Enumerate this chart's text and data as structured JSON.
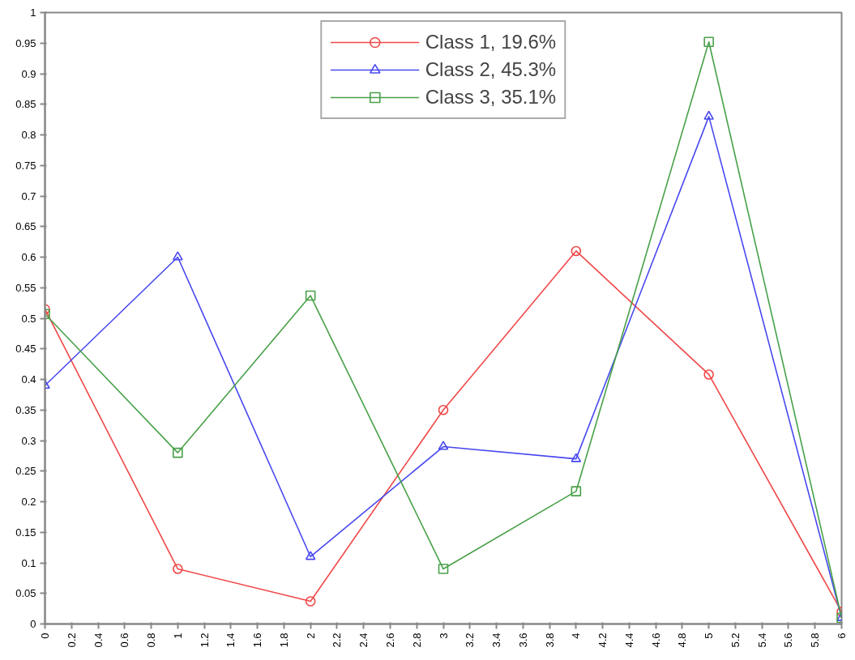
{
  "chart_data": {
    "type": "line",
    "x": [
      0,
      1,
      2,
      3,
      4,
      5,
      6
    ],
    "series": [
      {
        "name": "Class 1, 19.6%",
        "color": "#f04848",
        "marker": "circle",
        "values": [
          0.515,
          0.09,
          0.037,
          0.35,
          0.61,
          0.408,
          0.02
        ]
      },
      {
        "name": "Class 2, 45.3%",
        "color": "#4848f0",
        "marker": "triangle",
        "values": [
          0.39,
          0.6,
          0.11,
          0.29,
          0.27,
          0.83,
          0.01
        ]
      },
      {
        "name": "Class 3, 35.1%",
        "color": "#48a048",
        "marker": "square",
        "values": [
          0.507,
          0.28,
          0.537,
          0.09,
          0.217,
          0.952,
          0.01
        ]
      }
    ],
    "xlim": [
      0,
      6
    ],
    "xticks": [
      0,
      0.2,
      0.4,
      0.6,
      0.8,
      1,
      1.2,
      1.4,
      1.6,
      1.8,
      2,
      2.2,
      2.4,
      2.6,
      2.8,
      3,
      3.2,
      3.4,
      3.6,
      3.8,
      4,
      4.2,
      4.4,
      4.6,
      4.8,
      5,
      5.2,
      5.4,
      5.6,
      5.8,
      6
    ],
    "ylim": [
      0,
      1
    ],
    "yticks": [
      0,
      0.05,
      0.1,
      0.15,
      0.2,
      0.25,
      0.3,
      0.35,
      0.4,
      0.45,
      0.5,
      0.55,
      0.6,
      0.65,
      0.7,
      0.75,
      0.8,
      0.85,
      0.9,
      0.95,
      1
    ],
    "grid": false,
    "legend": "top",
    "line_style": "solid"
  }
}
